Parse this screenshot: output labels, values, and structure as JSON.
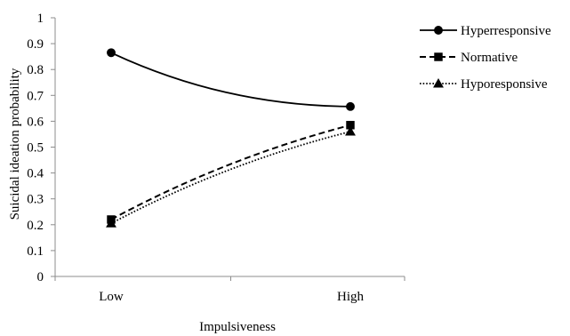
{
  "chart_data": {
    "type": "line",
    "categories": [
      "Low",
      "High"
    ],
    "xlabel": "Impulsiveness",
    "ylabel": "Suicidal ideation probability",
    "ylim": [
      0,
      1
    ],
    "yticks": [
      "0",
      "0.1",
      "0.2",
      "0.3",
      "0.4",
      "0.5",
      "0.6",
      "0.7",
      "0.8",
      "0.9",
      "1"
    ],
    "grid": false,
    "legend_position": "top-right",
    "series": [
      {
        "name": "Hyperresponsive",
        "values": [
          0.865,
          0.657
        ],
        "marker": "circle",
        "dash": "solid"
      },
      {
        "name": "Normative",
        "values": [
          0.22,
          0.585
        ],
        "marker": "square",
        "dash": "dashed"
      },
      {
        "name": "Hyporesponsive",
        "values": [
          0.205,
          0.56
        ],
        "marker": "triangle",
        "dash": "dotted"
      }
    ]
  }
}
